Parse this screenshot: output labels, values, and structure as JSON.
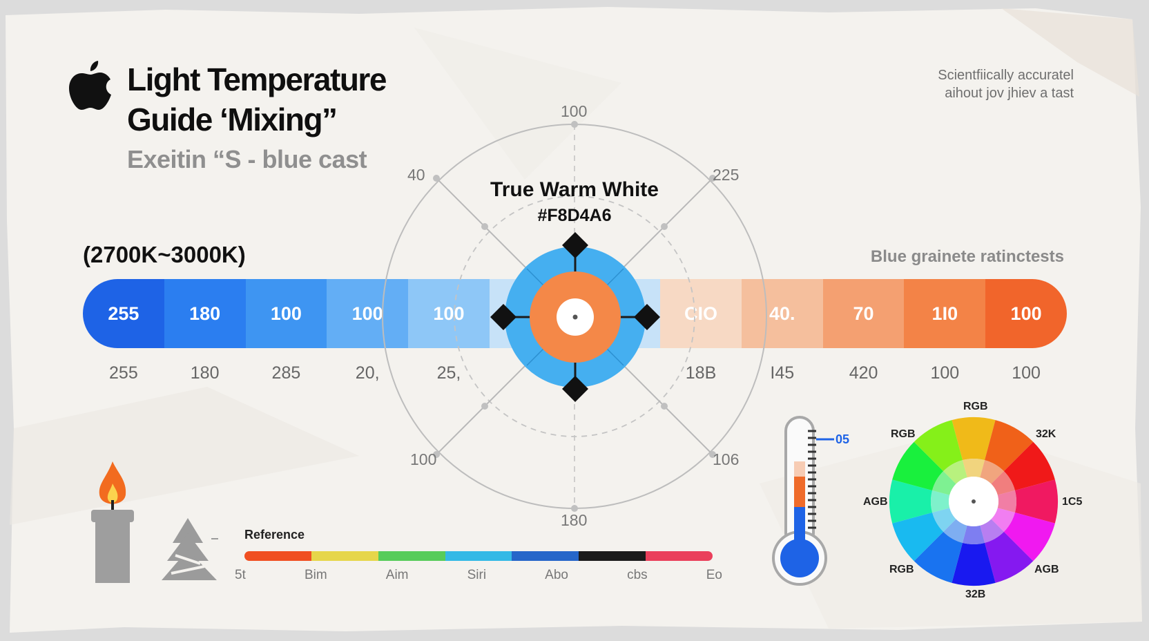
{
  "header": {
    "title_line1": "Light Temperature",
    "title_line2": "Guide ‘Mixing”",
    "subtitle": "Exeitin “S - blue cast"
  },
  "tagline": {
    "line1": "Scientfiically accuratel",
    "line2": "aihout jov jhiev a tast"
  },
  "range_label": "(2700K~3000K)",
  "right_caption": "Blue grainete ratinctests",
  "band": {
    "segments": [
      {
        "label": "255",
        "color": "#1e63e6"
      },
      {
        "label": "180",
        "color": "#2b7ef0"
      },
      {
        "label": "100",
        "color": "#3e95f2"
      },
      {
        "label": "100",
        "color": "#63aef5"
      },
      {
        "label": "100",
        "color": "#8ec7f7"
      },
      {
        "label": "",
        "color": "#c7e2f8"
      },
      {
        "label": "CIO",
        "color": "#f7d9c4"
      },
      {
        "label": "40.",
        "color": "#f5bf9d"
      },
      {
        "label": "70",
        "color": "#f4a071"
      },
      {
        "label": "1I0",
        "color": "#f38347"
      },
      {
        "label": "100",
        "color": "#f1652b"
      }
    ],
    "below_values": [
      "255",
      "180",
      "285",
      "20,",
      "25,",
      "",
      "18B",
      "I45",
      "420",
      "100",
      "100"
    ]
  },
  "dial": {
    "labels": {
      "top": "100",
      "top_left": "40",
      "top_right": "225",
      "bottom_left": "100",
      "bottom_right": "106",
      "bottom": "180"
    },
    "center_name": "True Warm White",
    "center_hex": "#F8D4A6",
    "center_color": "#f48848",
    "ring_color": "#45aff0"
  },
  "reference": {
    "title": "Reference",
    "colors": [
      "#f04f21",
      "#e6d64a",
      "#57cc5a",
      "#34b9e6",
      "#2666c9",
      "#1b1b1b",
      "#ea3f5b"
    ],
    "labels": [
      "5t",
      "Bim",
      "Aim",
      "Siri",
      "Abo",
      "cbs",
      "Eo"
    ]
  },
  "thermometer": {
    "tag": "05",
    "accent": "#1e63e6"
  },
  "color_wheel": {
    "labels": {
      "top": "RGB",
      "top_left": "RGB",
      "top_right": "32K",
      "left": "AGB",
      "right": "1C5",
      "bottom_left": "RGB",
      "bottom_right": "AGB",
      "bottom": "32B"
    }
  },
  "icons": [
    "apple-icon",
    "candle-icon",
    "pine-tree-icon",
    "thermometer-icon",
    "color-wheel-icon"
  ]
}
